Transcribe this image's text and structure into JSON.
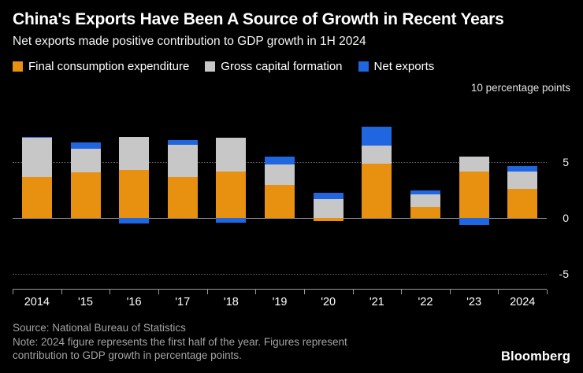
{
  "header": {
    "title": "China's Exports Have Been A Source of Growth in Recent Years",
    "subtitle": "Net exports made positive contribution to GDP growth in 1H 2024"
  },
  "chart_data": {
    "type": "bar",
    "stacked": true,
    "title": "China's Exports Have Been A Source of Growth in Recent Years",
    "subtitle": "Net exports made positive contribution to GDP growth in 1H 2024",
    "unit_label": "10 percentage points",
    "categories": [
      "2014",
      "'15",
      "'16",
      "'17",
      "'18",
      "'19",
      "'20",
      "'21",
      "'22",
      "'23",
      "2024"
    ],
    "series": [
      {
        "name": "Final consumption expenditure",
        "color": "#E8900F",
        "values": [
          3.7,
          4.1,
          4.3,
          3.7,
          4.2,
          3.0,
          -0.3,
          4.9,
          1.0,
          4.2,
          2.6
        ]
      },
      {
        "name": "Gross capital formation",
        "color": "#C7C7C7",
        "values": [
          3.5,
          2.1,
          3.0,
          2.9,
          3.0,
          1.8,
          1.7,
          1.6,
          1.1,
          1.3,
          1.6
        ]
      },
      {
        "name": "Net exports",
        "color": "#1F66E0",
        "values": [
          0.1,
          0.6,
          -0.5,
          0.4,
          -0.4,
          0.7,
          0.6,
          1.7,
          0.4,
          -0.6,
          0.5
        ]
      }
    ],
    "yticks": [
      5,
      0,
      -5
    ],
    "ylim": [
      -6.4,
      10.8
    ],
    "grid": "horizontal dotted",
    "legend_position": "top-left",
    "background": "#000000"
  },
  "footer": {
    "source": "Source: National Bureau of Statistics",
    "note_line1": "Note: 2024 figure represents the first half of the year. Figures represent",
    "note_line2": "contribution to GDP growth in percentage points.",
    "brand": "Bloomberg"
  }
}
